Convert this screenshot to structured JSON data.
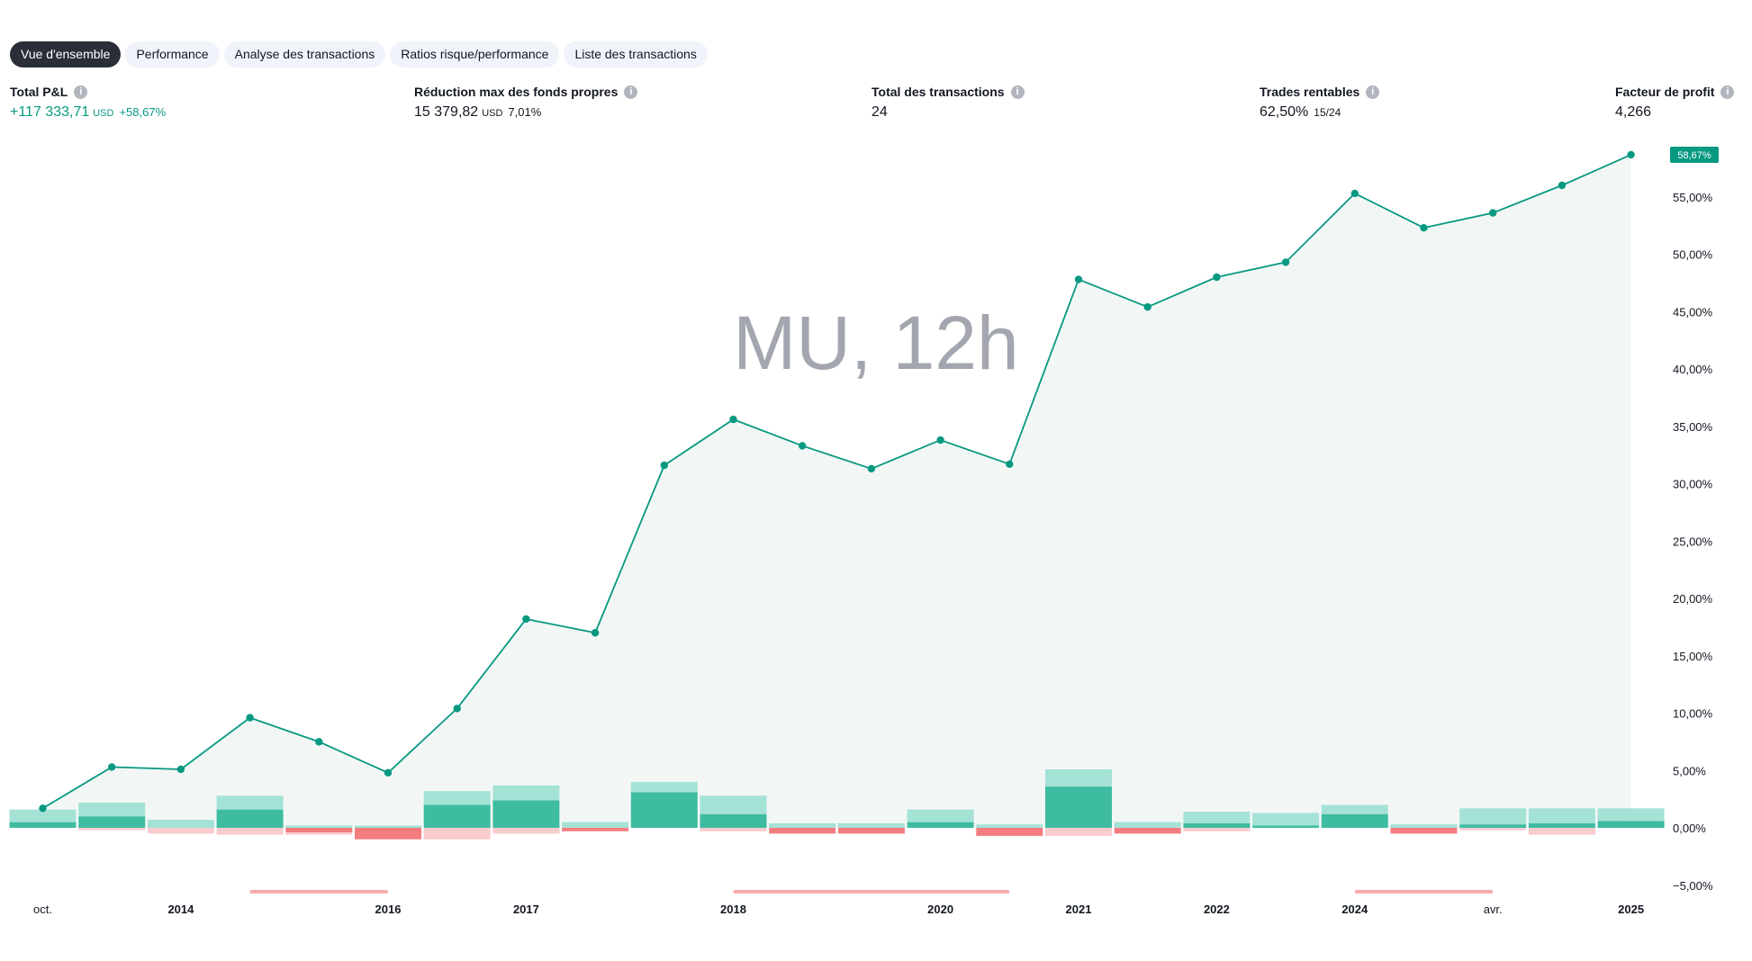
{
  "tabs": [
    {
      "label": "Vue d'ensemble",
      "active": true
    },
    {
      "label": "Performance",
      "active": false
    },
    {
      "label": "Analyse des transactions",
      "active": false
    },
    {
      "label": "Ratios risque/performance",
      "active": false
    },
    {
      "label": "Liste des transactions",
      "active": false
    }
  ],
  "stats": {
    "total_pl": {
      "label": "Total P&L",
      "value": "+117 333,71",
      "currency": "USD",
      "sub": "+58,67%"
    },
    "drawdown": {
      "label": "Réduction max des fonds propres",
      "value": "15 379,82",
      "currency": "USD",
      "sub": "7,01%"
    },
    "trades": {
      "label": "Total des transactions",
      "value": "24"
    },
    "profitable": {
      "label": "Trades rentables",
      "value": "62,50%",
      "sub": "15/24"
    },
    "profit_factor": {
      "label": "Facteur de profit",
      "value": "4,266"
    }
  },
  "info_glyph": "i",
  "colors": {
    "line": "#089981",
    "area": "#f2f7f6",
    "bar_green_dark": "#3ebca2",
    "bar_green_light": "#a5e2d6",
    "bar_red_dark": "#f47c7f",
    "bar_red_light": "#fccbcd",
    "drawdown_marker": "#f7a9ab",
    "watermark": "#a3a6af"
  },
  "chart_data": {
    "type": "line",
    "watermark": "MU, 12h",
    "ylim": [
      -5,
      60
    ],
    "yticks": [
      -5,
      0,
      5,
      10,
      15,
      20,
      25,
      30,
      35,
      40,
      45,
      50,
      55
    ],
    "ytick_labels": [
      "−5,00%",
      "0,00%",
      "5,00%",
      "10,00%",
      "15,00%",
      "20,00%",
      "25,00%",
      "30,00%",
      "35,00%",
      "40,00%",
      "45,00%",
      "50,00%",
      "55,00%"
    ],
    "last_value_label": "58,67%",
    "equity_pct": [
      1.7,
      5.3,
      5.1,
      9.6,
      7.5,
      4.8,
      10.4,
      18.2,
      17.0,
      31.6,
      35.6,
      33.3,
      31.3,
      33.8,
      31.7,
      47.8,
      45.4,
      48.0,
      49.3,
      55.3,
      52.3,
      53.6,
      56.0,
      58.67
    ],
    "trade_bars": [
      {
        "green_dark": 0.5,
        "green_light": 1.1,
        "red_dark": 0,
        "red_light": 0
      },
      {
        "green_dark": 1.0,
        "green_light": 1.2,
        "red_dark": 0,
        "red_light": 0.2
      },
      {
        "green_dark": 0,
        "green_light": 0.7,
        "red_dark": 0,
        "red_light": 0.5
      },
      {
        "green_dark": 1.6,
        "green_light": 1.2,
        "red_dark": 0,
        "red_light": 0.6
      },
      {
        "green_dark": 0,
        "green_light": 0.2,
        "red_dark": 0.4,
        "red_light": 0.2
      },
      {
        "green_dark": 0,
        "green_light": 0.2,
        "red_dark": 1.0,
        "red_light": 0
      },
      {
        "green_dark": 2.0,
        "green_light": 1.2,
        "red_dark": 0,
        "red_light": 1.0
      },
      {
        "green_dark": 2.4,
        "green_light": 1.3,
        "red_dark": 0,
        "red_light": 0.5
      },
      {
        "green_dark": 0,
        "green_light": 0.5,
        "red_dark": 0.3,
        "red_light": 0
      },
      {
        "green_dark": 3.1,
        "green_light": 0.9,
        "red_dark": 0,
        "red_light": 0
      },
      {
        "green_dark": 1.2,
        "green_light": 1.6,
        "red_dark": 0,
        "red_light": 0.3
      },
      {
        "green_dark": 0,
        "green_light": 0.4,
        "red_dark": 0.5,
        "red_light": 0
      },
      {
        "green_dark": 0,
        "green_light": 0.4,
        "red_dark": 0.5,
        "red_light": 0
      },
      {
        "green_dark": 0.5,
        "green_light": 1.1,
        "red_dark": 0,
        "red_light": 0
      },
      {
        "green_dark": 0,
        "green_light": 0.3,
        "red_dark": 0.7,
        "red_light": 0
      },
      {
        "green_dark": 3.6,
        "green_light": 1.5,
        "red_dark": 0,
        "red_light": 0.7
      },
      {
        "green_dark": 0,
        "green_light": 0.5,
        "red_dark": 0.5,
        "red_light": 0
      },
      {
        "green_dark": 0.4,
        "green_light": 1.0,
        "red_dark": 0,
        "red_light": 0.3
      },
      {
        "green_dark": 0.2,
        "green_light": 1.1,
        "red_dark": 0,
        "red_light": 0
      },
      {
        "green_dark": 1.2,
        "green_light": 0.8,
        "red_dark": 0,
        "red_light": 0
      },
      {
        "green_dark": 0,
        "green_light": 0.3,
        "red_dark": 0.5,
        "red_light": 0
      },
      {
        "green_dark": 0.3,
        "green_light": 1.4,
        "red_dark": 0,
        "red_light": 0.2
      },
      {
        "green_dark": 0.4,
        "green_light": 1.3,
        "red_dark": 0,
        "red_light": 0.6
      },
      {
        "green_dark": 0.6,
        "green_light": 1.1,
        "red_dark": 0,
        "red_light": 0
      }
    ],
    "x_labels": [
      {
        "text": "oct.",
        "index": 0,
        "bold": false
      },
      {
        "text": "2014",
        "index": 2,
        "bold": true
      },
      {
        "text": "2016",
        "index": 5,
        "bold": true
      },
      {
        "text": "2017",
        "index": 7,
        "bold": true
      },
      {
        "text": "2018",
        "index": 10,
        "bold": true
      },
      {
        "text": "2020",
        "index": 13,
        "bold": true
      },
      {
        "text": "2021",
        "index": 15,
        "bold": true
      },
      {
        "text": "2022",
        "index": 17,
        "bold": true
      },
      {
        "text": "2024",
        "index": 19,
        "bold": true
      },
      {
        "text": "avr.",
        "index": 21,
        "bold": false
      },
      {
        "text": "2025",
        "index": 23,
        "bold": true
      }
    ],
    "drawdown_periods": [
      [
        3,
        5
      ],
      [
        10,
        14
      ],
      [
        19,
        21
      ]
    ]
  }
}
